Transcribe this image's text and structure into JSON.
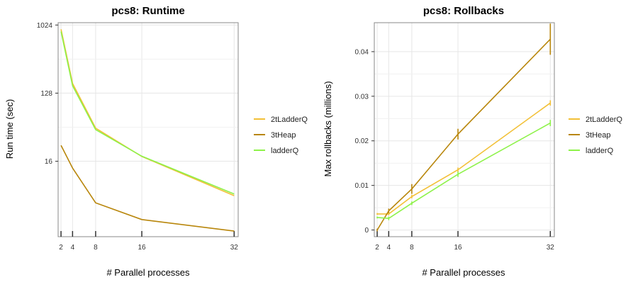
{
  "chart_data": [
    {
      "type": "line",
      "title": "pcs8: Runtime",
      "xlabel": "# Parallel processes",
      "ylabel": "Run time (sec)",
      "yscale": "log2",
      "x": [
        2,
        4,
        8,
        16,
        32
      ],
      "x_ticks": [
        "2",
        "4",
        "8",
        "16",
        "32"
      ],
      "y_ticks": [
        "16",
        "128",
        "1024"
      ],
      "y_tick_values": [
        16,
        128,
        1024
      ],
      "xlim": [
        1.5,
        32.7
      ],
      "ylim": [
        1.6,
        1100
      ],
      "grid": true,
      "legend_position": "right",
      "series": [
        {
          "name": "2tLadderQ",
          "color": "#f2c037",
          "values": [
            900,
            172,
            44,
            18.5,
            5.6
          ]
        },
        {
          "name": "3tHeap",
          "color": "#b8860b",
          "values": [
            26,
            13,
            4.5,
            2.7,
            1.9
          ]
        },
        {
          "name": "ladderQ",
          "color": "#8ef24a",
          "values": [
            840,
            160,
            42,
            18.7,
            5.9
          ]
        }
      ]
    },
    {
      "type": "line",
      "title": "pcs8: Rollbacks",
      "xlabel": "# Parallel processes",
      "ylabel": "Max rollbacks (millions)",
      "yscale": "linear",
      "x": [
        2,
        4,
        8,
        16,
        32
      ],
      "x_ticks": [
        "2",
        "4",
        "8",
        "16",
        "32"
      ],
      "y_ticks": [
        "0",
        "0.01",
        "0.02",
        "0.03",
        "0.04"
      ],
      "y_tick_values": [
        0,
        0.01,
        0.02,
        0.03,
        0.04
      ],
      "xlim": [
        1.5,
        32.7
      ],
      "ylim": [
        -0.0015,
        0.0465
      ],
      "grid": true,
      "legend_position": "right",
      "series": [
        {
          "name": "2tLadderQ",
          "color": "#f2c037",
          "values": [
            0.0036,
            0.0036,
            0.0075,
            0.0135,
            0.0285
          ],
          "errors": [
            0.0002,
            0.0003,
            0.0004,
            0.0005,
            0.0006
          ]
        },
        {
          "name": "3tHeap",
          "color": "#b8860b",
          "values": [
            0.0,
            0.0043,
            0.0092,
            0.0215,
            0.0428
          ],
          "errors": [
            0.0003,
            0.0005,
            0.0011,
            0.0012,
            0.0035
          ]
        },
        {
          "name": "ladderQ",
          "color": "#8ef24a",
          "values": [
            0.0028,
            0.0026,
            0.006,
            0.0125,
            0.024
          ],
          "errors": [
            0.0002,
            0.0004,
            0.0004,
            0.0006,
            0.0007
          ]
        }
      ]
    }
  ]
}
